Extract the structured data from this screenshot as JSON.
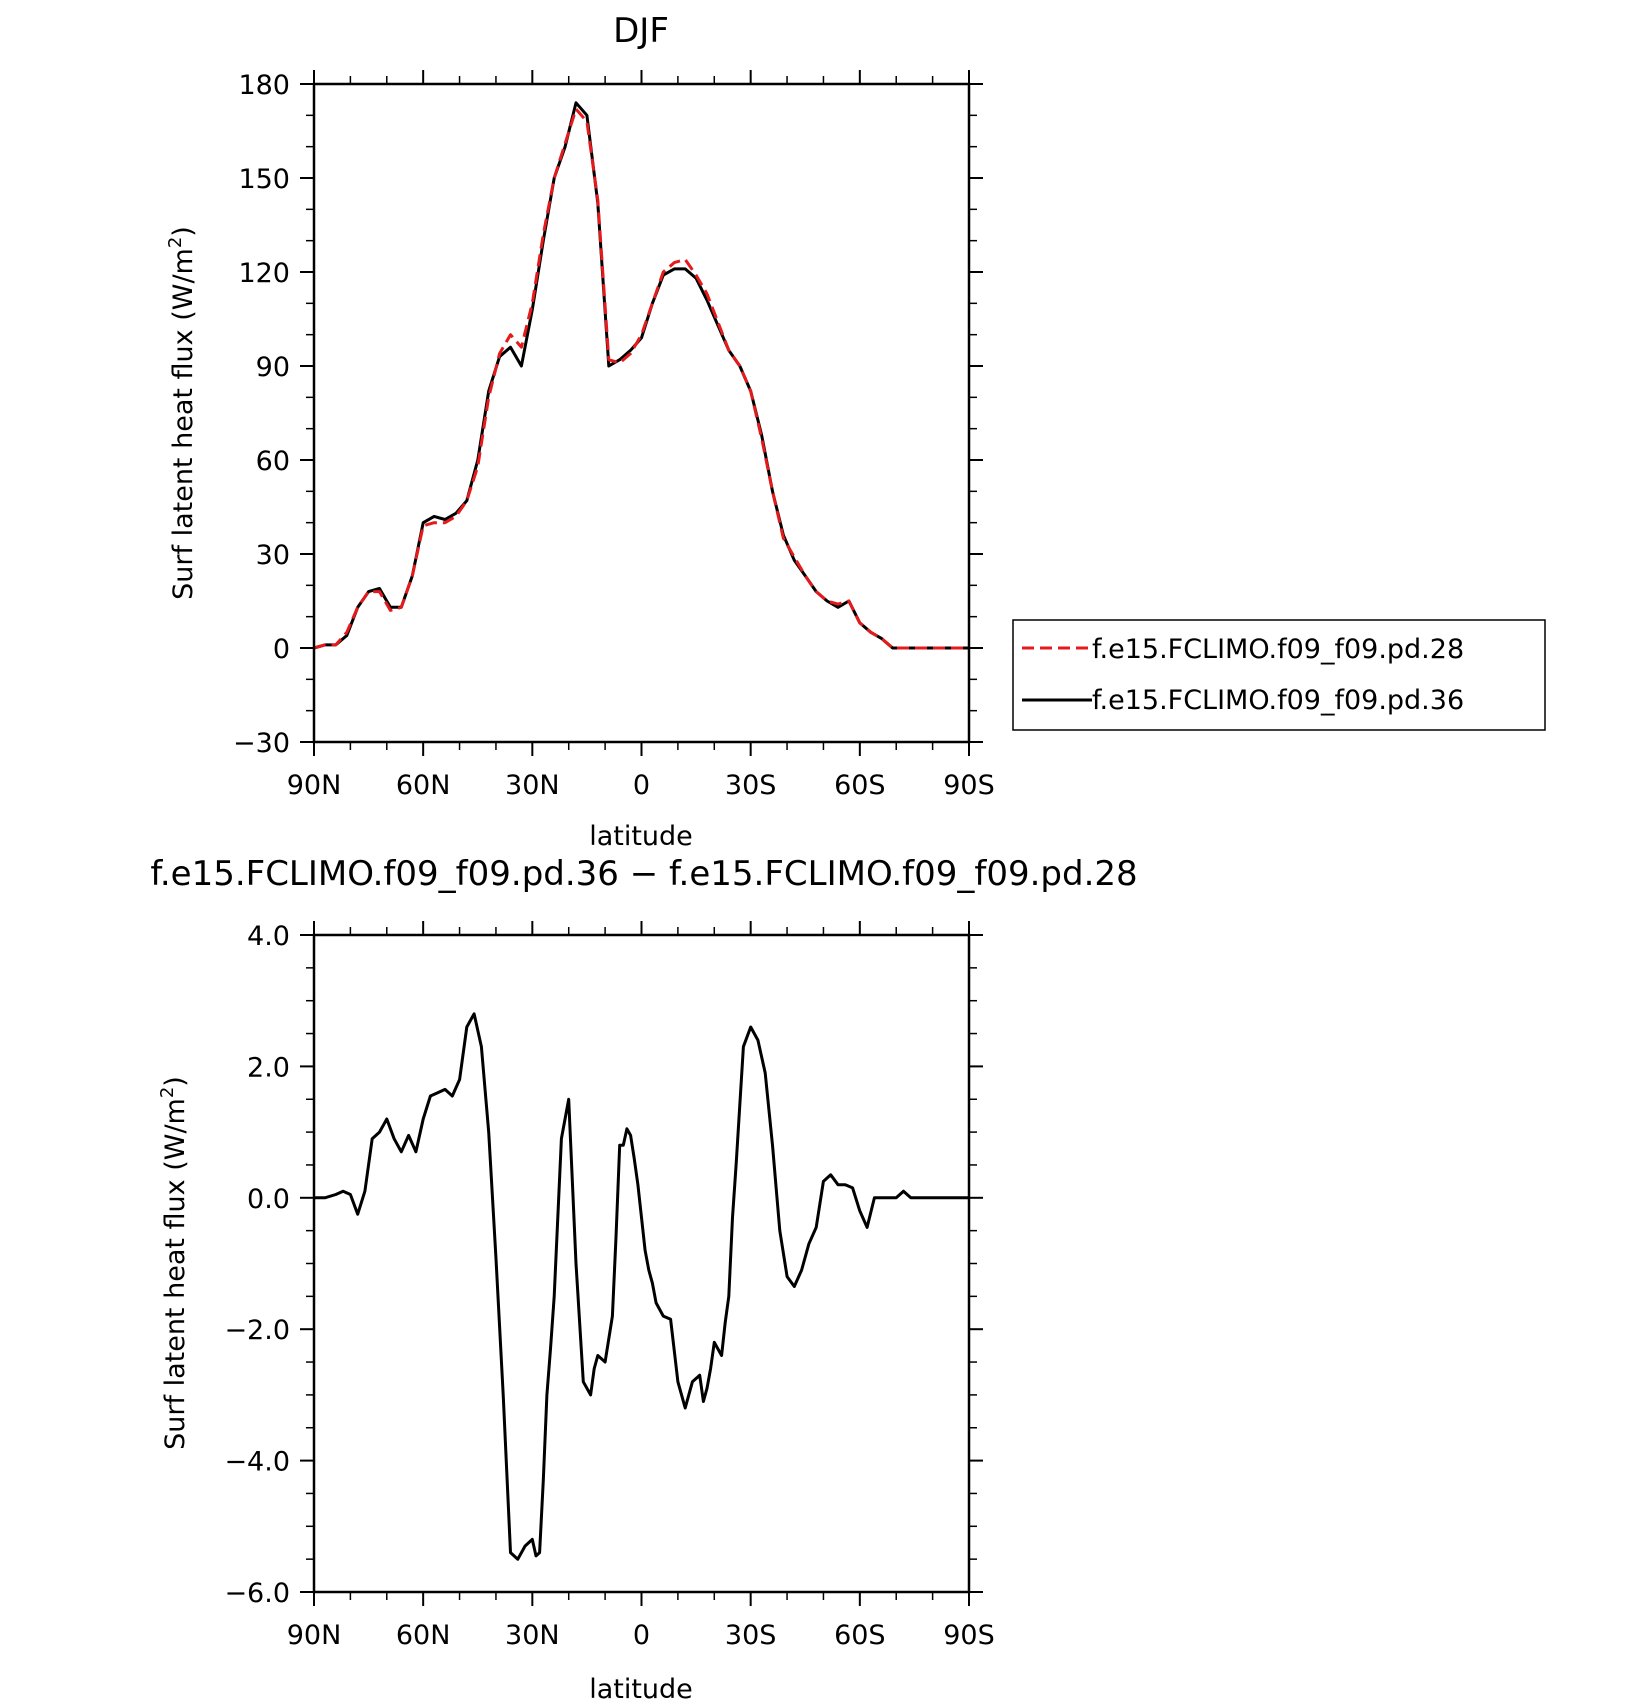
{
  "colors": {
    "run28": "#e41a1c",
    "run36": "#000000",
    "diff": "#000000"
  },
  "chart_data": [
    {
      "type": "line",
      "title": "DJF",
      "xlabel": "latitude",
      "ylabel": "Surf latent heat flux (W/m",
      "ylabel_sup": "2",
      "ylabel_close": ")",
      "xlim": [
        -90,
        90
      ],
      "ylim": [
        -30,
        180
      ],
      "xticks": [
        -90,
        -60,
        -30,
        0,
        30,
        60,
        90
      ],
      "xtick_labels": [
        "90N",
        "60N",
        "30N",
        "0",
        "30S",
        "60S",
        "90S"
      ],
      "yticks": [
        -30,
        0,
        30,
        60,
        90,
        120,
        150,
        180
      ],
      "ytick_labels": [
        "−30",
        "0",
        "30",
        "60",
        "90",
        "120",
        "150",
        "180"
      ],
      "legend": "right-middle",
      "series": [
        {
          "name": "f.e15.FCLIMO.f09_f09.pd.28",
          "style": "dashed",
          "color": "#e41a1c",
          "x": [
            -90,
            -87,
            -84,
            -81,
            -78,
            -75,
            -72,
            -69,
            -66,
            -63,
            -60,
            -57,
            -54,
            -51,
            -48,
            -45,
            -42,
            -39,
            -36,
            -33,
            -30,
            -27,
            -24,
            -21,
            -18,
            -15,
            -12,
            -9,
            -6,
            -3,
            0,
            3,
            6,
            9,
            12,
            15,
            18,
            21,
            24,
            27,
            30,
            33,
            36,
            39,
            42,
            45,
            48,
            51,
            54,
            57,
            60,
            63,
            66,
            69,
            72,
            75,
            78,
            81,
            84,
            87,
            90
          ],
          "y": [
            0,
            1,
            1,
            5,
            13,
            18,
            18,
            12,
            13,
            23,
            39,
            40,
            40,
            42,
            47,
            58,
            80,
            94,
            100,
            96,
            110,
            132,
            150,
            161,
            172,
            168,
            143,
            92,
            91,
            94,
            100,
            110,
            120,
            123,
            124,
            119,
            113,
            104,
            95,
            90,
            82,
            67,
            50,
            35,
            29,
            23,
            18,
            15,
            14,
            15,
            8,
            5,
            3,
            0,
            0,
            0,
            0,
            0,
            0,
            0,
            0
          ]
        },
        {
          "name": "f.e15.FCLIMO.f09_f09.pd.36",
          "style": "solid",
          "color": "#000000",
          "x": [
            -90,
            -87,
            -84,
            -81,
            -78,
            -75,
            -72,
            -69,
            -66,
            -63,
            -60,
            -57,
            -54,
            -51,
            -48,
            -45,
            -42,
            -39,
            -36,
            -33,
            -30,
            -27,
            -24,
            -21,
            -18,
            -15,
            -12,
            -9,
            -6,
            -3,
            0,
            3,
            6,
            9,
            12,
            15,
            18,
            21,
            24,
            27,
            30,
            33,
            36,
            39,
            42,
            45,
            48,
            51,
            54,
            57,
            60,
            63,
            66,
            69,
            72,
            75,
            78,
            81,
            84,
            87,
            90
          ],
          "y": [
            0,
            1,
            1,
            4,
            13,
            18,
            19,
            13,
            13,
            23,
            40,
            42,
            41,
            43,
            47,
            60,
            82,
            93,
            96,
            90,
            108,
            130,
            150,
            160,
            174,
            170,
            142,
            90,
            92,
            95,
            99,
            110,
            119,
            121,
            121,
            118,
            111,
            103,
            95,
            90,
            82,
            68,
            50,
            36,
            28,
            23,
            18,
            15,
            13,
            15,
            8,
            5,
            3,
            0,
            0,
            0,
            0,
            0,
            0,
            0,
            0
          ]
        }
      ]
    },
    {
      "type": "line",
      "title": "f.e15.FCLIMO.f09_f09.pd.36 − f.e15.FCLIMO.f09_f09.pd.28",
      "xlabel": "latitude",
      "ylabel": "Surf latent heat flux (W/m",
      "ylabel_sup": "2",
      "ylabel_close": ")",
      "xlim": [
        -90,
        90
      ],
      "ylim": [
        -6,
        4
      ],
      "xticks": [
        -90,
        -60,
        -30,
        0,
        30,
        60,
        90
      ],
      "xtick_labels": [
        "90N",
        "60N",
        "30N",
        "0",
        "30S",
        "60S",
        "90S"
      ],
      "yticks": [
        -6,
        -4,
        -2,
        0,
        2,
        4
      ],
      "ytick_labels": [
        "−6.0",
        "−4.0",
        "−2.0",
        "0.0",
        "2.0",
        "4.0"
      ],
      "series": [
        {
          "color": "#000000",
          "x": [
            -90,
            -87,
            -84,
            -82,
            -80,
            -78,
            -76,
            -74,
            -72,
            -70,
            -68,
            -66,
            -64,
            -62,
            -60,
            -58,
            -56,
            -54,
            -52,
            -50,
            -48,
            -46,
            -44,
            -42,
            -40,
            -38,
            -36,
            -34,
            -32,
            -30,
            -29,
            -28,
            -27,
            -26,
            -25,
            -24,
            -22,
            -20,
            -18,
            -16,
            -14,
            -13,
            -12,
            -10,
            -8,
            -7,
            -6,
            -5,
            -4,
            -3,
            -2,
            -1,
            0,
            1,
            2,
            3,
            4,
            6,
            8,
            10,
            12,
            14,
            16,
            17,
            18,
            19,
            20,
            21,
            22,
            23,
            24,
            25,
            26,
            28,
            30,
            32,
            34,
            36,
            38,
            40,
            42,
            44,
            46,
            48,
            50,
            52,
            54,
            56,
            58,
            60,
            62,
            64,
            66,
            68,
            70,
            72,
            74,
            76,
            78,
            80,
            84,
            87,
            90
          ],
          "y": [
            0,
            0,
            0.05,
            0.1,
            0.05,
            -0.25,
            0.1,
            0.9,
            1.0,
            1.2,
            0.9,
            0.7,
            0.95,
            0.7,
            1.2,
            1.55,
            1.6,
            1.65,
            1.55,
            1.8,
            2.6,
            2.8,
            2.3,
            1.0,
            -0.9,
            -3.0,
            -5.4,
            -5.5,
            -5.3,
            -5.2,
            -5.45,
            -5.4,
            -4.3,
            -3.0,
            -2.3,
            -1.5,
            0.9,
            1.5,
            -1.0,
            -2.8,
            -3.0,
            -2.6,
            -2.4,
            -2.5,
            -1.8,
            -0.6,
            0.8,
            0.8,
            1.05,
            0.95,
            0.6,
            0.2,
            -0.3,
            -0.8,
            -1.1,
            -1.3,
            -1.6,
            -1.8,
            -1.85,
            -2.8,
            -3.2,
            -2.8,
            -2.7,
            -3.1,
            -2.9,
            -2.6,
            -2.2,
            -2.3,
            -2.4,
            -1.9,
            -1.5,
            -0.3,
            0.5,
            2.3,
            2.6,
            2.4,
            1.9,
            0.8,
            -0.5,
            -1.2,
            -1.35,
            -1.1,
            -0.7,
            -0.45,
            0.25,
            0.35,
            0.2,
            0.2,
            0.15,
            -0.2,
            -0.45,
            0,
            0,
            0,
            0,
            0.1,
            0,
            0,
            0,
            0,
            0,
            0,
            0
          ]
        }
      ]
    }
  ]
}
